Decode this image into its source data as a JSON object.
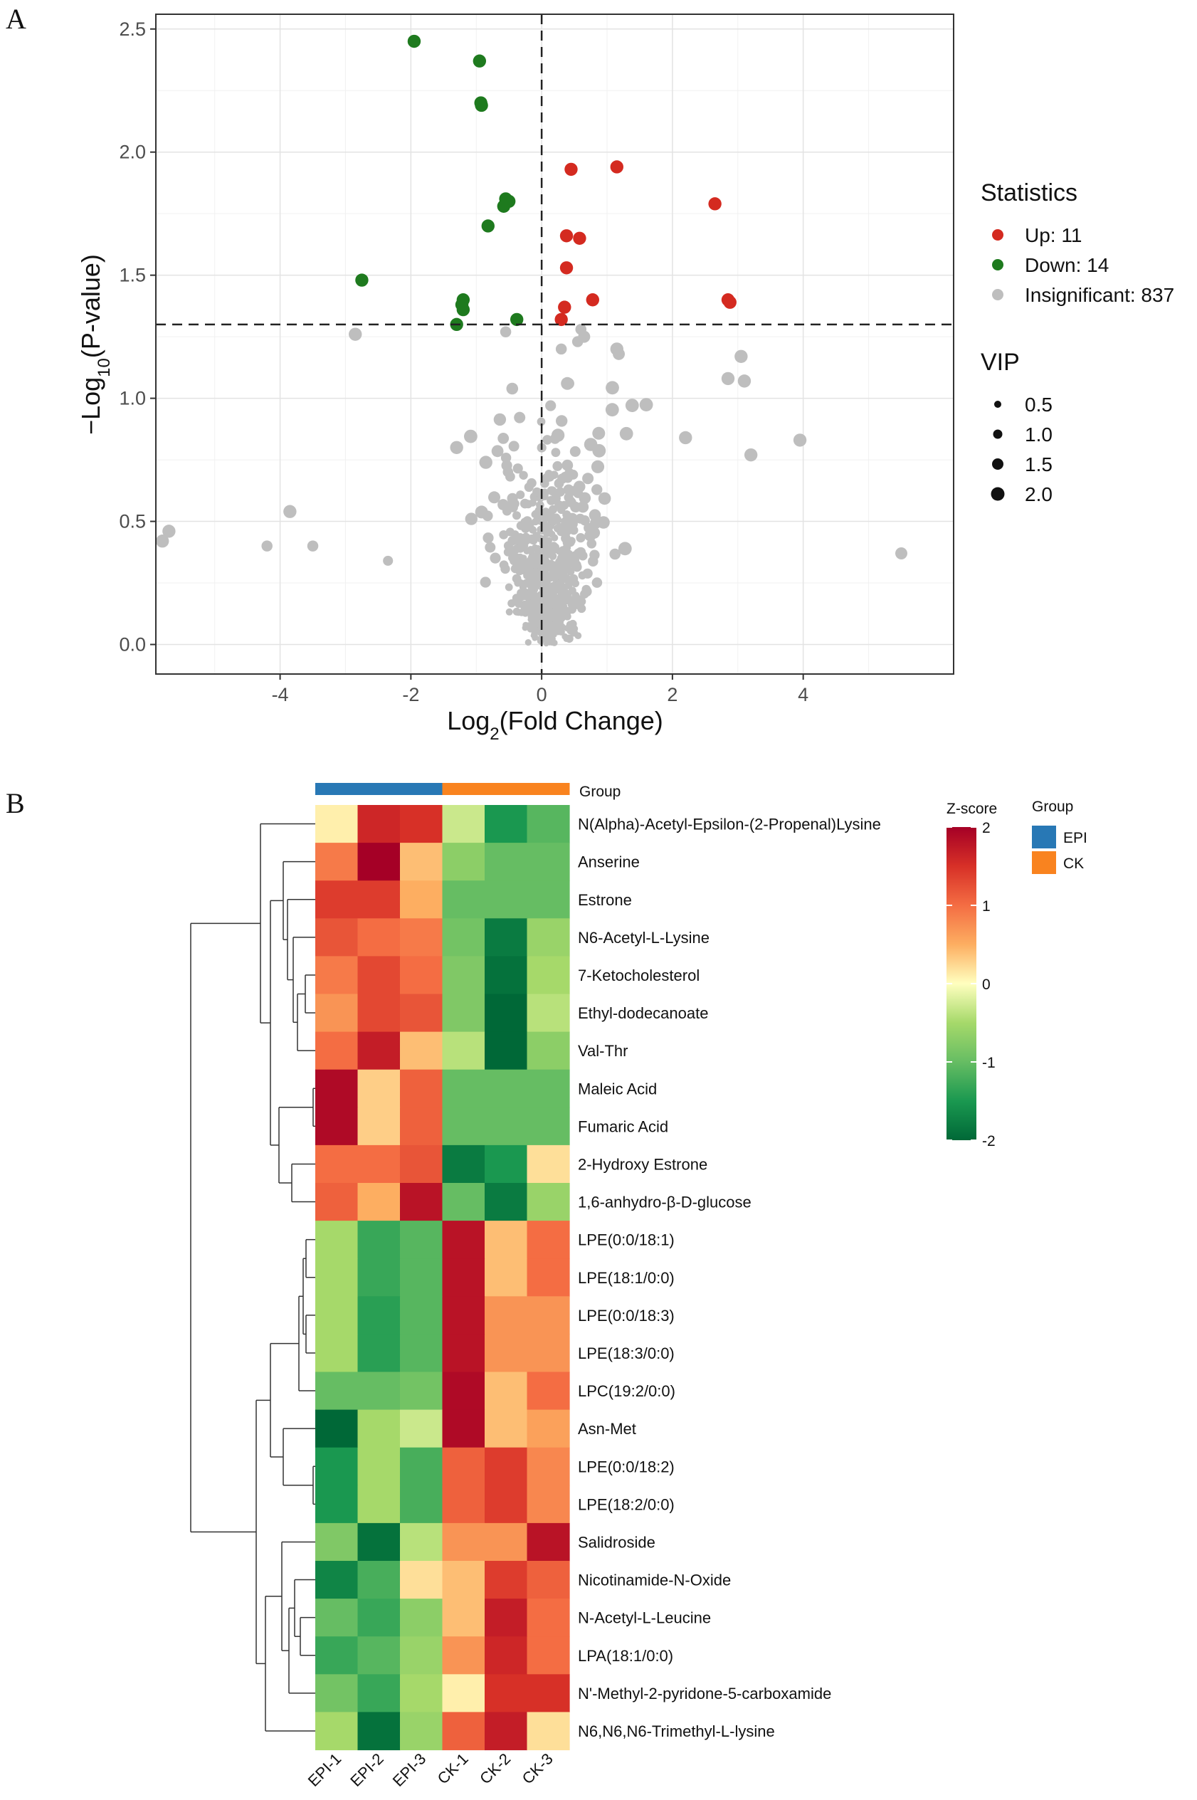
{
  "colors": {
    "up": "#D42A20",
    "down": "#1E7A1E",
    "insig": "#BEBEBE",
    "epi": "#2878B5",
    "ck": "#F9831F"
  },
  "chart_data": [
    {
      "type": "scatter",
      "panel": "A",
      "xlabel_main": "Log",
      "xlabel_sub": "2",
      "xlabel_rest": "(Fold Change)",
      "ylabel_main": "−Log",
      "ylabel_sub": "10",
      "ylabel_rest": "(P-value)",
      "xlim": [
        -5.9,
        6.3
      ],
      "ylim": [
        -0.12,
        2.56
      ],
      "xticks": [
        -4,
        -2,
        0,
        2,
        4
      ],
      "yticks": [
        0.0,
        0.5,
        1.0,
        1.5,
        2.0,
        2.5
      ],
      "xtick_labels": [
        "-4",
        "-2",
        "0",
        "2",
        "4"
      ],
      "ytick_labels": [
        "0.0",
        "0.5",
        "1.0",
        "1.5",
        "2.0",
        "2.5"
      ],
      "thresholds": {
        "x": 0,
        "y": 1.3
      },
      "legend": {
        "stat_title": "Statistics",
        "up": "Up: 11",
        "down": "Down: 14",
        "insig": "Insignificant: 837",
        "vip_title": "VIP",
        "vip": [
          "0.5",
          "1.0",
          "1.5",
          "2.0"
        ],
        "vip_values": [
          0.5,
          1.0,
          1.5,
          2.0
        ]
      },
      "up_points": [
        [
          0.45,
          1.93,
          2.0
        ],
        [
          1.15,
          1.94,
          2.0
        ],
        [
          2.65,
          1.79,
          2.0
        ],
        [
          0.38,
          1.66,
          2.0
        ],
        [
          0.58,
          1.65,
          2.0
        ],
        [
          0.38,
          1.53,
          2.0
        ],
        [
          0.78,
          1.4,
          2.0
        ],
        [
          2.85,
          1.4,
          2.0
        ],
        [
          0.35,
          1.37,
          2.0
        ],
        [
          0.3,
          1.32,
          2.0
        ],
        [
          2.88,
          1.39,
          2.0
        ]
      ],
      "down_points": [
        [
          -1.95,
          2.45,
          2.0
        ],
        [
          -0.95,
          2.37,
          2.0
        ],
        [
          -0.92,
          2.19,
          2.0
        ],
        [
          -0.5,
          1.8,
          2.0
        ],
        [
          -0.58,
          1.78,
          2.0
        ],
        [
          -0.82,
          1.7,
          2.0
        ],
        [
          -2.75,
          1.48,
          2.0
        ],
        [
          -1.2,
          1.4,
          2.0
        ],
        [
          -1.2,
          1.36,
          2.0
        ],
        [
          -0.38,
          1.32,
          2.0
        ],
        [
          -1.3,
          1.3,
          2.0
        ],
        [
          -1.22,
          1.38,
          2.0
        ],
        [
          -0.55,
          1.81,
          2.0
        ],
        [
          -0.93,
          2.2,
          2.0
        ]
      ],
      "insig_points": [
        [
          -5.7,
          0.46,
          2.0
        ],
        [
          -5.8,
          0.42,
          2.0
        ],
        [
          -3.85,
          0.54,
          2.0
        ],
        [
          -4.2,
          0.4,
          1.6
        ],
        [
          -3.5,
          0.4,
          1.6
        ],
        [
          -2.85,
          1.26,
          2.0
        ],
        [
          -2.35,
          0.34,
          1.4
        ],
        [
          -0.55,
          1.27,
          1.6
        ],
        [
          0.65,
          1.25,
          1.8
        ],
        [
          0.3,
          1.2,
          1.6
        ],
        [
          1.15,
          1.2,
          2.0
        ],
        [
          1.18,
          1.18,
          1.8
        ],
        [
          3.05,
          1.17,
          2.0
        ],
        [
          2.85,
          1.08,
          2.0
        ],
        [
          3.1,
          1.07,
          2.0
        ],
        [
          2.2,
          0.84,
          2.0
        ],
        [
          3.95,
          0.83,
          2.0
        ],
        [
          3.2,
          0.77,
          2.0
        ],
        [
          5.5,
          0.37,
          1.8
        ],
        [
          0.25,
          0.85,
          2.0
        ],
        [
          -1.3,
          0.8,
          2.0
        ],
        [
          0.55,
          1.23,
          1.6
        ],
        [
          0.6,
          1.28,
          1.6
        ]
      ],
      "dense_cloud": {
        "count": 814,
        "description": "insignificant metabolites"
      }
    },
    {
      "type": "heatmap",
      "panel": "B",
      "annotation_label": "Group",
      "columns": [
        "EPI-1",
        "EPI-2",
        "EPI-3",
        "CK-1",
        "CK-2",
        "CK-3"
      ],
      "column_groups": [
        "EPI",
        "EPI",
        "EPI",
        "CK",
        "CK",
        "CK"
      ],
      "rows": [
        "N(Alpha)-Acetyl-Epsilon-(2-Propenal)Lysine",
        "Anserine",
        "Estrone",
        "N6-Acetyl-L-Lysine",
        "7-Ketocholesterol",
        "Ethyl-dodecanoate",
        "Val-Thr",
        "Maleic Acid",
        "Fumaric Acid",
        "2-Hydroxy Estrone",
        "1,6-anhydro-β-D-glucose",
        "LPE(0:0/18:1)",
        "LPE(18:1/0:0)",
        "LPE(0:0/18:3)",
        "LPE(18:3/0:0)",
        "LPC(19:2/0:0)",
        "Asn-Met",
        "LPE(0:0/18:2)",
        "LPE(18:2/0:0)",
        "Salidroside",
        "Nicotinamide-N-Oxide",
        "N-Acetyl-L-Leucine",
        "LPA(18:1/0:0)",
        "N'-Methyl-2-pyridone-5-carboxamide",
        "N6,N6,N6-Trimethyl-L-lysine"
      ],
      "values": [
        [
          0.1,
          1.6,
          1.5,
          -0.3,
          -1.5,
          -1.1
        ],
        [
          0.9,
          2.0,
          0.4,
          -0.7,
          -1.0,
          -1.0
        ],
        [
          1.4,
          1.4,
          0.5,
          -1.0,
          -1.0,
          -1.0
        ],
        [
          1.2,
          1.0,
          0.9,
          -0.9,
          -1.8,
          -0.6
        ],
        [
          0.9,
          1.3,
          1.0,
          -0.8,
          -1.9,
          -0.5
        ],
        [
          0.7,
          1.3,
          1.2,
          -0.8,
          -2.0,
          -0.4
        ],
        [
          1.0,
          1.7,
          0.4,
          -0.4,
          -2.0,
          -0.7
        ],
        [
          1.9,
          0.3,
          1.1,
          -1.0,
          -1.0,
          -1.0
        ],
        [
          1.9,
          0.3,
          1.1,
          -1.0,
          -1.0,
          -1.0
        ],
        [
          1.0,
          1.0,
          1.2,
          -1.8,
          -1.5,
          0.2
        ],
        [
          1.1,
          0.5,
          1.8,
          -1.0,
          -1.8,
          -0.6
        ],
        [
          -0.5,
          -1.3,
          -1.1,
          1.8,
          0.4,
          1.0
        ],
        [
          -0.5,
          -1.3,
          -1.1,
          1.8,
          0.4,
          1.0
        ],
        [
          -0.5,
          -1.4,
          -1.1,
          1.8,
          0.7,
          0.7
        ],
        [
          -0.5,
          -1.4,
          -1.1,
          1.8,
          0.7,
          0.7
        ],
        [
          -1.0,
          -1.0,
          -0.9,
          1.9,
          0.4,
          1.0
        ],
        [
          -2.0,
          -0.5,
          -0.3,
          1.9,
          0.4,
          0.6
        ],
        [
          -1.5,
          -0.5,
          -1.2,
          1.1,
          1.4,
          0.8
        ],
        [
          -1.5,
          -0.5,
          -1.2,
          1.1,
          1.4,
          0.8
        ],
        [
          -0.8,
          -1.9,
          -0.4,
          0.7,
          0.7,
          1.8
        ],
        [
          -1.7,
          -1.2,
          0.2,
          0.4,
          1.4,
          1.1
        ],
        [
          -1.0,
          -1.3,
          -0.7,
          0.4,
          1.7,
          1.0
        ],
        [
          -1.3,
          -1.1,
          -0.6,
          0.7,
          1.6,
          1.0
        ],
        [
          -0.9,
          -1.3,
          -0.5,
          0.1,
          1.5,
          1.5
        ],
        [
          -0.5,
          -1.9,
          -0.6,
          1.1,
          1.7,
          0.2
        ]
      ],
      "colorbar": {
        "title": "Z-score",
        "ticks": [
          "2",
          "1",
          "0",
          "-1",
          "-2"
        ],
        "range": [
          -2,
          2
        ]
      },
      "group_legend": {
        "title": "Group",
        "items": [
          "EPI",
          "CK"
        ]
      }
    }
  ],
  "labels": {
    "panel_a": "A",
    "panel_b": "B"
  }
}
